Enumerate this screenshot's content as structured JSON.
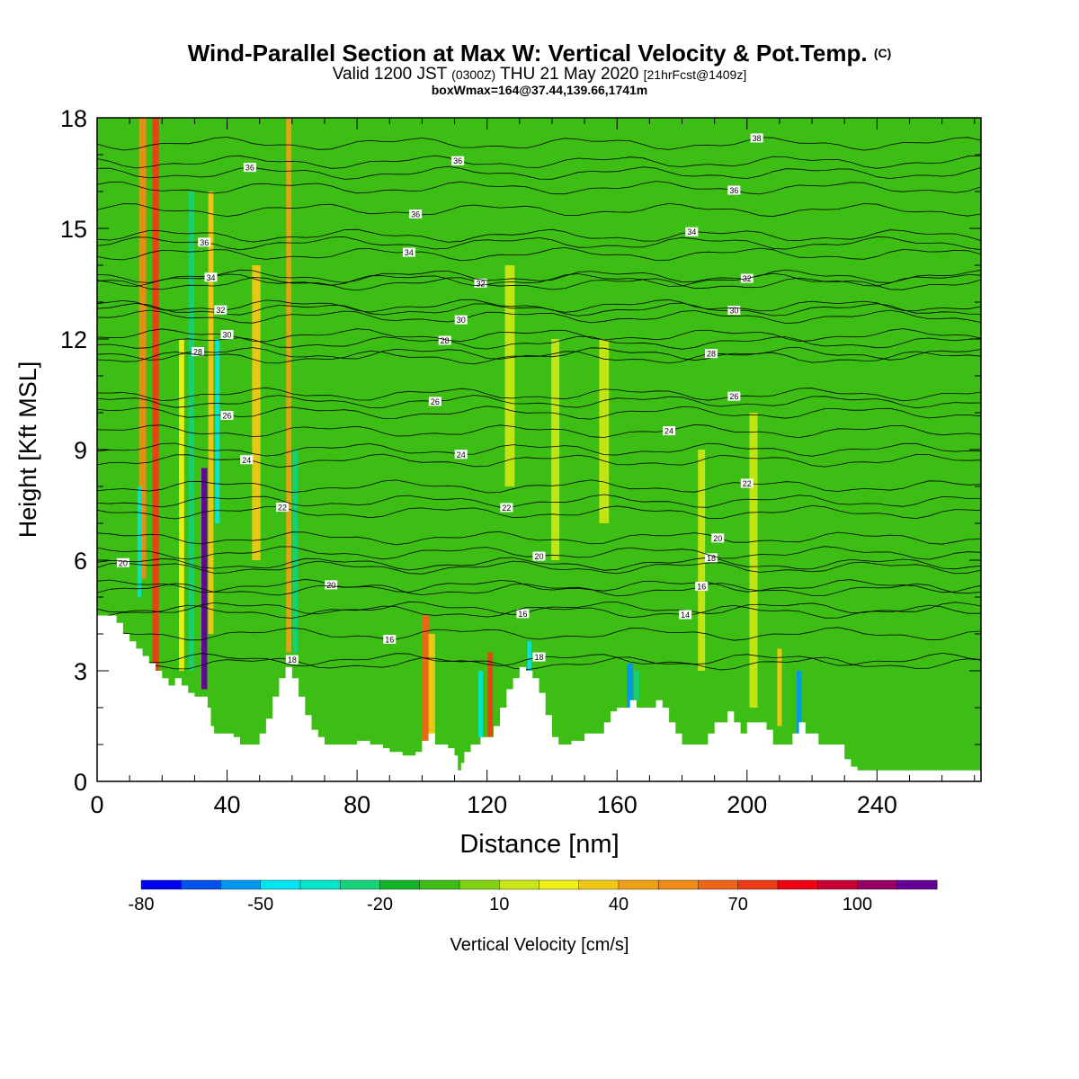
{
  "title": {
    "main": "Wind-Parallel Section at Max W: Vertical Velocity & Pot.Temp.",
    "mark": "(C)",
    "valid_prefix": "Valid 1200 JST",
    "valid_utc": "(0300Z)",
    "valid_date": "THU 21 May 2020",
    "forecast": "[21hrFcst@1409z]",
    "boxwmax": "boxWmax=164@37.44,139.66,1741m"
  },
  "colors": {
    "background_field": "#3cbe14",
    "terrain": "#ffffff",
    "contour": "#000000"
  },
  "chart_data": {
    "type": "heatmap",
    "xlabel": "Distance [nm]",
    "ylabel": "Height [Kft MSL]",
    "xlim": [
      0,
      272
    ],
    "ylim": [
      0,
      18
    ],
    "xticks": [
      0,
      40,
      80,
      120,
      160,
      200,
      240
    ],
    "yticks": [
      0,
      3,
      6,
      9,
      12,
      15,
      18
    ],
    "colorbar": {
      "label": "Vertical Velocity [cm/s]",
      "ticks": [
        -80,
        -50,
        -20,
        10,
        40,
        70,
        100
      ],
      "levels": [
        -80,
        -70,
        -60,
        -50,
        -40,
        -30,
        -20,
        -10,
        0,
        10,
        20,
        30,
        40,
        50,
        60,
        70,
        80,
        90,
        100,
        110,
        120
      ],
      "colors": [
        "#0000f0",
        "#0050f0",
        "#0096f0",
        "#00e6f0",
        "#00e6c8",
        "#14d278",
        "#14b428",
        "#3cbe14",
        "#82d214",
        "#c8e614",
        "#f0f014",
        "#f0c814",
        "#f0a014",
        "#f08c14",
        "#f06414",
        "#f03c14",
        "#f00014",
        "#c80032",
        "#960064",
        "#640096"
      ]
    },
    "terrain_kft": [
      [
        0,
        4.5
      ],
      [
        4,
        4.5
      ],
      [
        6,
        4.3
      ],
      [
        8,
        4.0
      ],
      [
        10,
        3.8
      ],
      [
        12,
        3.6
      ],
      [
        14,
        3.4
      ],
      [
        16,
        3.2
      ],
      [
        18,
        3.0
      ],
      [
        20,
        2.8
      ],
      [
        22,
        2.6
      ],
      [
        24,
        2.8
      ],
      [
        26,
        2.6
      ],
      [
        28,
        2.4
      ],
      [
        30,
        2.3
      ],
      [
        32,
        2.3
      ],
      [
        34,
        2.0
      ],
      [
        35,
        1.5
      ],
      [
        36,
        1.3
      ],
      [
        40,
        1.3
      ],
      [
        42,
        1.2
      ],
      [
        44,
        1.0
      ],
      [
        48,
        1.0
      ],
      [
        50,
        1.3
      ],
      [
        52,
        1.7
      ],
      [
        54,
        2.3
      ],
      [
        56,
        2.8
      ],
      [
        58,
        3.1
      ],
      [
        60,
        2.8
      ],
      [
        62,
        2.3
      ],
      [
        64,
        1.8
      ],
      [
        66,
        1.4
      ],
      [
        68,
        1.2
      ],
      [
        70,
        1.0
      ],
      [
        76,
        1.0
      ],
      [
        80,
        1.1
      ],
      [
        84,
        1.0
      ],
      [
        88,
        0.9
      ],
      [
        90,
        0.8
      ],
      [
        94,
        0.7
      ],
      [
        98,
        0.8
      ],
      [
        100,
        1.1
      ],
      [
        102,
        1.3
      ],
      [
        104,
        1.0
      ],
      [
        106,
        1.0
      ],
      [
        108,
        0.9
      ],
      [
        110,
        0.7
      ],
      [
        111,
        0.3
      ],
      [
        112,
        0.5
      ],
      [
        113,
        0.8
      ],
      [
        115,
        1.0
      ],
      [
        118,
        1.2
      ],
      [
        122,
        1.5
      ],
      [
        124,
        2.0
      ],
      [
        126,
        2.5
      ],
      [
        128,
        2.8
      ],
      [
        130,
        3.1
      ],
      [
        132,
        3.0
      ],
      [
        134,
        2.8
      ],
      [
        136,
        2.4
      ],
      [
        138,
        1.8
      ],
      [
        140,
        1.2
      ],
      [
        142,
        1.0
      ],
      [
        146,
        1.1
      ],
      [
        150,
        1.3
      ],
      [
        156,
        1.6
      ],
      [
        158,
        1.9
      ],
      [
        160,
        2.0
      ],
      [
        164,
        2.2
      ],
      [
        166,
        2.0
      ],
      [
        168,
        2.0
      ],
      [
        172,
        2.2
      ],
      [
        174,
        2.0
      ],
      [
        176,
        1.6
      ],
      [
        178,
        1.3
      ],
      [
        180,
        1.0
      ],
      [
        184,
        1.0
      ],
      [
        188,
        1.3
      ],
      [
        190,
        1.6
      ],
      [
        194,
        1.9
      ],
      [
        196,
        1.6
      ],
      [
        198,
        1.3
      ],
      [
        200,
        1.6
      ],
      [
        204,
        1.6
      ],
      [
        206,
        1.4
      ],
      [
        208,
        1.0
      ],
      [
        212,
        1.0
      ],
      [
        214,
        1.3
      ],
      [
        216,
        1.6
      ],
      [
        218,
        1.3
      ],
      [
        220,
        1.3
      ],
      [
        222,
        1.0
      ],
      [
        226,
        1.0
      ],
      [
        230,
        0.6
      ],
      [
        232,
        0.4
      ],
      [
        234,
        0.3
      ],
      [
        272,
        0.3
      ]
    ],
    "w_features": [
      {
        "x": 14,
        "w": 2.2,
        "z0": 5.5,
        "z1": 18,
        "value": 55
      },
      {
        "x": 18,
        "w": 2.0,
        "z0": 3.0,
        "z1": 18,
        "value": 75
      },
      {
        "x": 21,
        "w": 1.6,
        "z0": 3.0,
        "z1": 18,
        "value": -5
      },
      {
        "x": 26,
        "w": 1.6,
        "z0": 3.0,
        "z1": 12,
        "value": 25
      },
      {
        "x": 29,
        "w": 1.8,
        "z0": 3.0,
        "z1": 16,
        "value": -30
      },
      {
        "x": 33,
        "w": 1.8,
        "z0": 2.5,
        "z1": 8.5,
        "value": 110
      },
      {
        "x": 35,
        "w": 1.6,
        "z0": 4.0,
        "z1": 16,
        "value": 30
      },
      {
        "x": 37,
        "w": 1.4,
        "z0": 7.0,
        "z1": 12,
        "value": -50
      },
      {
        "x": 13,
        "w": 1.2,
        "z0": 5.0,
        "z1": 8.0,
        "value": -40
      },
      {
        "x": 49,
        "w": 2.6,
        "z0": 6.0,
        "z1": 14,
        "value": 30
      },
      {
        "x": 59,
        "w": 1.6,
        "z0": 3.5,
        "z1": 18,
        "value": 45
      },
      {
        "x": 61,
        "w": 1.4,
        "z0": 3.5,
        "z1": 9,
        "value": -30
      },
      {
        "x": 101,
        "w": 2.2,
        "z0": 1.0,
        "z1": 4.5,
        "value": 60
      },
      {
        "x": 103,
        "w": 2.0,
        "z0": 1.0,
        "z1": 4.0,
        "value": 30
      },
      {
        "x": 121,
        "w": 1.6,
        "z0": 1.2,
        "z1": 3.5,
        "value": 75
      },
      {
        "x": 118,
        "w": 1.4,
        "z0": 1.2,
        "z1": 3.0,
        "value": -40
      },
      {
        "x": 133,
        "w": 1.2,
        "z0": 2.5,
        "z1": 3.8,
        "value": -50
      },
      {
        "x": 164,
        "w": 2.0,
        "z0": 2.0,
        "z1": 3.2,
        "value": -55
      },
      {
        "x": 166,
        "w": 1.6,
        "z0": 2.2,
        "z1": 3.0,
        "value": -30
      },
      {
        "x": 216,
        "w": 1.4,
        "z0": 1.3,
        "z1": 3.0,
        "value": -60
      },
      {
        "x": 210,
        "w": 1.4,
        "z0": 1.5,
        "z1": 3.6,
        "value": 30
      },
      {
        "x": 127,
        "w": 3.0,
        "z0": 8.0,
        "z1": 14,
        "value": 15
      },
      {
        "x": 141,
        "w": 2.5,
        "z0": 6.0,
        "z1": 12,
        "value": 10
      },
      {
        "x": 156,
        "w": 3.0,
        "z0": 7.0,
        "z1": 12,
        "value": 10
      },
      {
        "x": 186,
        "w": 2.2,
        "z0": 3.0,
        "z1": 9,
        "value": 15
      },
      {
        "x": 202,
        "w": 2.5,
        "z0": 2.0,
        "z1": 10,
        "value": 10
      }
    ],
    "theta_contours": [
      {
        "z": 5.8,
        "label": "20",
        "lx": 8
      },
      {
        "z": 5.3,
        "label": "20",
        "lx": 72
      },
      {
        "z": 4.0,
        "label": "16",
        "lx": 90
      },
      {
        "z": 3.2,
        "label": "18",
        "lx": 60
      },
      {
        "z": 4.7,
        "label": "16",
        "lx": 131
      },
      {
        "z": 3.3,
        "label": "18",
        "lx": 136
      },
      {
        "z": 4.6,
        "label": "14",
        "lx": 181
      },
      {
        "z": 5.2,
        "label": "16",
        "lx": 186
      },
      {
        "z": 5.9,
        "label": "18",
        "lx": 189
      },
      {
        "z": 6.6,
        "label": "20",
        "lx": 191
      },
      {
        "z": 6.2,
        "label": "20",
        "lx": 136
      },
      {
        "z": 7.3,
        "label": "22",
        "lx": 57
      },
      {
        "z": 7.6,
        "label": "22",
        "lx": 126
      },
      {
        "z": 8.0,
        "label": "22",
        "lx": 200
      },
      {
        "z": 8.7,
        "label": "24",
        "lx": 46
      },
      {
        "z": 9.0,
        "label": "24",
        "lx": 112
      },
      {
        "z": 9.5,
        "label": "24",
        "lx": 176
      },
      {
        "z": 10.0,
        "label": "26",
        "lx": 40
      },
      {
        "z": 10.3,
        "label": "26",
        "lx": 104
      },
      {
        "z": 10.5,
        "label": "26",
        "lx": 196
      },
      {
        "z": 11.6,
        "label": "28",
        "lx": 31
      },
      {
        "z": 11.9,
        "label": "28",
        "lx": 107
      },
      {
        "z": 11.5,
        "label": "28",
        "lx": 189
      },
      {
        "z": 12.1,
        "label": "30",
        "lx": 40
      },
      {
        "z": 12.6,
        "label": "30",
        "lx": 112
      },
      {
        "z": 12.8,
        "label": "30",
        "lx": 196
      },
      {
        "z": 12.9,
        "label": "32",
        "lx": 38
      },
      {
        "z": 13.5,
        "label": "32",
        "lx": 118
      },
      {
        "z": 13.7,
        "label": "32",
        "lx": 200
      },
      {
        "z": 13.6,
        "label": "34",
        "lx": 35
      },
      {
        "z": 14.3,
        "label": "34",
        "lx": 96
      },
      {
        "z": 14.8,
        "label": "34",
        "lx": 183
      },
      {
        "z": 14.6,
        "label": "36",
        "lx": 33
      },
      {
        "z": 15.5,
        "label": "36",
        "lx": 98
      },
      {
        "z": 16.1,
        "label": "36",
        "lx": 196
      },
      {
        "z": 16.5,
        "label": "36",
        "lx": 47
      },
      {
        "z": 16.8,
        "label": "36",
        "lx": 111
      },
      {
        "z": 17.3,
        "label": "38",
        "lx": 203
      }
    ]
  }
}
